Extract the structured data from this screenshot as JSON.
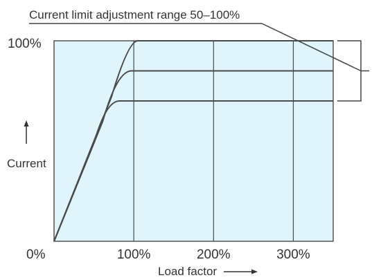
{
  "chart_data": {
    "type": "line",
    "annotation": "Current limit adjustment range 50–100%",
    "xlabel": "Load factor",
    "ylabel": "Current",
    "x_ticks": [
      "100%",
      "200%",
      "300%"
    ],
    "y_ticks": [
      "100%"
    ],
    "origin_label": "0%",
    "xlim": [
      0,
      350
    ],
    "ylim": [
      0,
      100
    ],
    "grid": true,
    "plot_background": "#dff4fb",
    "line_color": "#4a4a4a",
    "series": [
      {
        "values": [
          [
            0,
            0
          ],
          [
            100,
            100
          ],
          [
            350,
            100
          ]
        ]
      },
      {
        "values": [
          [
            0,
            0
          ],
          [
            85,
            85
          ],
          [
            350,
            85
          ]
        ]
      },
      {
        "values": [
          [
            0,
            0
          ],
          [
            70,
            70
          ],
          [
            350,
            70
          ]
        ]
      }
    ],
    "current_limit_range": [
      50,
      100
    ]
  }
}
